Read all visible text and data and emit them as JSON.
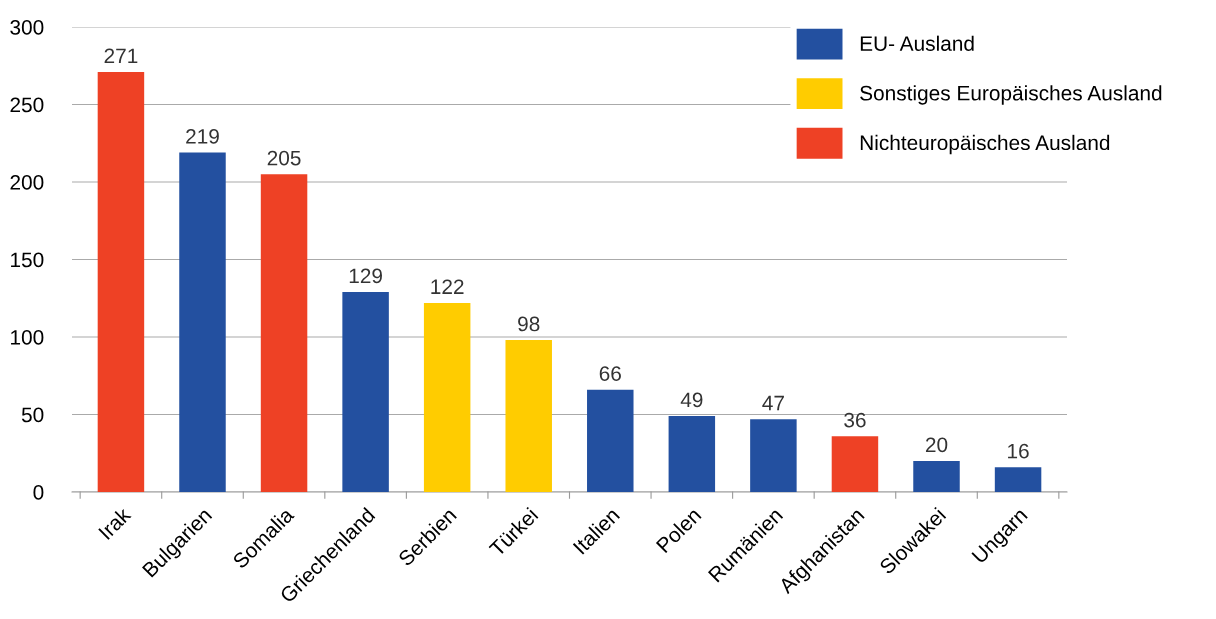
{
  "chart_data": {
    "type": "bar",
    "stacked": true,
    "categories": [
      "Irak",
      "Bulgarien",
      "Somalia",
      "Griechenland",
      "Serbien",
      "Türkei",
      "Italien",
      "Polen",
      "Rumänien",
      "Afghanistan",
      "Slowakei",
      "Ungarn"
    ],
    "series": [
      {
        "name": "EU- Ausland",
        "color": "#2350a0",
        "values": [
          null,
          219,
          null,
          129,
          null,
          null,
          66,
          49,
          47,
          null,
          20,
          16
        ]
      },
      {
        "name": "Sonstiges Europäisches Ausland",
        "color": "#ffcc00",
        "values": [
          null,
          null,
          null,
          null,
          122,
          98,
          null,
          null,
          null,
          null,
          null,
          null
        ]
      },
      {
        "name": "Nichteuropäisches Ausland",
        "color": "#ee4125",
        "values": [
          271,
          null,
          205,
          null,
          null,
          null,
          null,
          null,
          null,
          36,
          null,
          null
        ]
      }
    ],
    "ylim": [
      0,
      300
    ],
    "yticks": [
      0,
      50,
      100,
      150,
      200,
      250,
      300
    ],
    "grid": "y",
    "legend": "top right",
    "data_labels": true
  }
}
